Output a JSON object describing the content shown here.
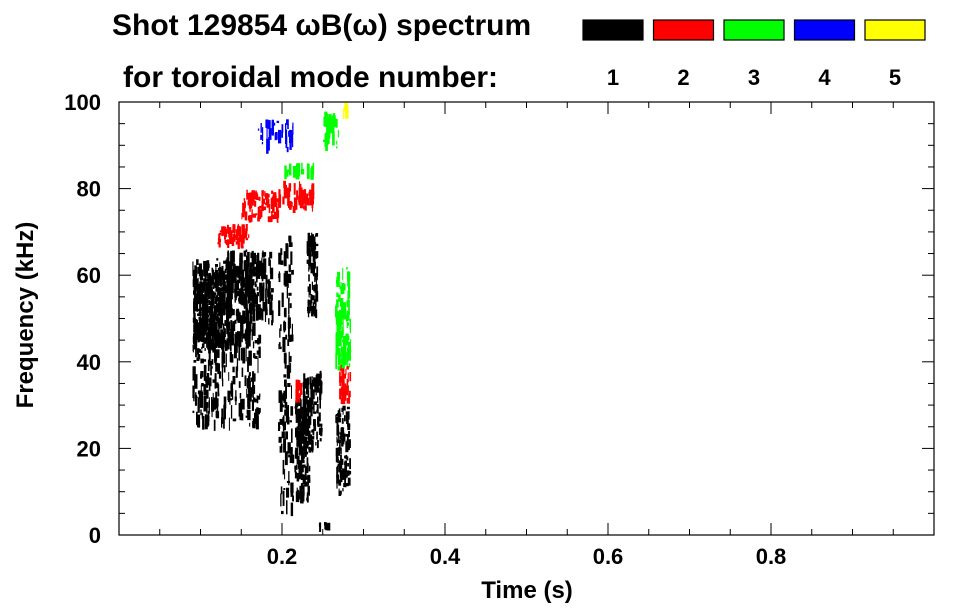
{
  "chart_data": {
    "type": "heatmap",
    "title_line1": "Shot 129854 ωB(ω) spectrum",
    "title_line2": "for toroidal mode number:",
    "xlabel": "Time (s)",
    "ylabel": "Frequency (kHz)",
    "xlim": [
      0.0,
      1.0
    ],
    "ylim": [
      0,
      100
    ],
    "x_ticks": [
      0.2,
      0.4,
      0.6,
      0.8
    ],
    "x_tick_labels": [
      "0.2",
      "0.4",
      "0.6",
      "0.8"
    ],
    "y_ticks": [
      0,
      20,
      40,
      60,
      80,
      100
    ],
    "y_tick_labels": [
      "0",
      "20",
      "40",
      "60",
      "80",
      "100"
    ],
    "legend": [
      {
        "mode": "1",
        "color": "#000000"
      },
      {
        "mode": "2",
        "color": "#ff0000"
      },
      {
        "mode": "3",
        "color": "#00ff00"
      },
      {
        "mode": "4",
        "color": "#0000ff"
      },
      {
        "mode": "5",
        "color": "#ffff00"
      }
    ],
    "features": [
      {
        "mode": "1",
        "t_range": [
          0.09,
          0.14
        ],
        "f_range": [
          42,
          62
        ],
        "density": 0.95
      },
      {
        "mode": "1",
        "t_range": [
          0.09,
          0.175
        ],
        "f_range": [
          24,
          64
        ],
        "density": 0.3
      },
      {
        "mode": "1",
        "t_range": [
          0.13,
          0.19
        ],
        "f_range": [
          48,
          66
        ],
        "density": 0.45
      },
      {
        "mode": "1",
        "t_range": [
          0.195,
          0.215
        ],
        "f_range": [
          4,
          70
        ],
        "density": 0.22
      },
      {
        "mode": "1",
        "t_range": [
          0.215,
          0.235
        ],
        "f_range": [
          7,
          32
        ],
        "density": 0.85
      },
      {
        "mode": "1",
        "t_range": [
          0.225,
          0.25
        ],
        "f_range": [
          18,
          38
        ],
        "density": 0.6
      },
      {
        "mode": "1",
        "t_range": [
          0.23,
          0.245
        ],
        "f_range": [
          50,
          70
        ],
        "density": 0.7
      },
      {
        "mode": "1",
        "t_range": [
          0.265,
          0.285
        ],
        "f_range": [
          8,
          30
        ],
        "density": 0.55
      },
      {
        "mode": "1",
        "t_range": [
          0.245,
          0.26
        ],
        "f_range": [
          1,
          3
        ],
        "density": 0.6
      },
      {
        "mode": "2",
        "t_range": [
          0.12,
          0.16
        ],
        "f_range": [
          66,
          72
        ],
        "density": 0.8
      },
      {
        "mode": "2",
        "t_range": [
          0.15,
          0.2
        ],
        "f_range": [
          72,
          80
        ],
        "density": 0.6
      },
      {
        "mode": "2",
        "t_range": [
          0.2,
          0.24
        ],
        "f_range": [
          74,
          82
        ],
        "density": 0.35
      },
      {
        "mode": "2",
        "t_range": [
          0.27,
          0.285
        ],
        "f_range": [
          30,
          40
        ],
        "density": 0.6
      },
      {
        "mode": "2",
        "t_range": [
          0.215,
          0.225
        ],
        "f_range": [
          30,
          36
        ],
        "density": 0.5
      },
      {
        "mode": "3",
        "t_range": [
          0.265,
          0.285
        ],
        "f_range": [
          38,
          62
        ],
        "density": 0.5
      },
      {
        "mode": "3",
        "t_range": [
          0.25,
          0.27
        ],
        "f_range": [
          88,
          98
        ],
        "density": 0.45
      },
      {
        "mode": "3",
        "t_range": [
          0.2,
          0.24
        ],
        "f_range": [
          82,
          86
        ],
        "density": 0.25
      },
      {
        "mode": "4",
        "t_range": [
          0.17,
          0.215
        ],
        "f_range": [
          88,
          96
        ],
        "density": 0.25
      },
      {
        "mode": "5",
        "t_range": [
          0.275,
          0.285
        ],
        "f_range": [
          96,
          100
        ],
        "density": 0.3
      }
    ]
  }
}
